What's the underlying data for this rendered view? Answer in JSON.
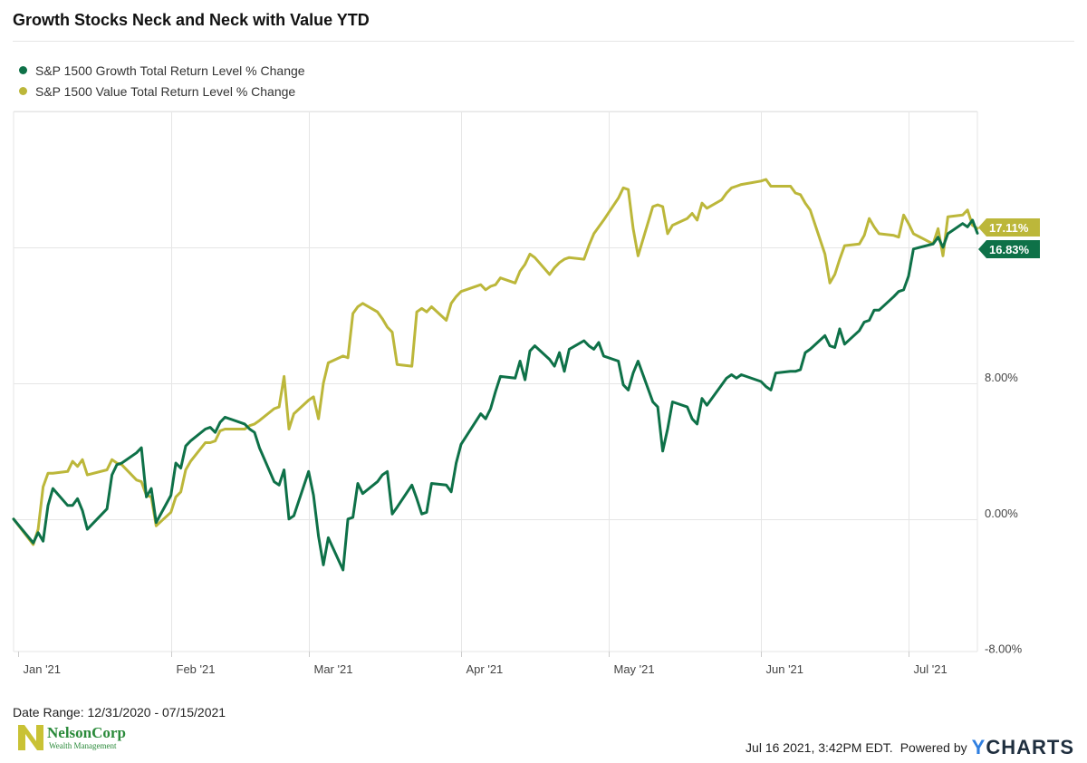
{
  "title": "Growth Stocks Neck and Neck with Value YTD",
  "date_range": "Date Range: 12/31/2020 - 07/15/2021",
  "timestamp": "Jul 16 2021, 3:42PM EDT.",
  "powered_by": "Powered by",
  "brand": {
    "y": "Y",
    "rest": "CHARTS"
  },
  "logo": {
    "name": "NelsonCorp",
    "sub": "Wealth Management"
  },
  "colors": {
    "growth": "#0e7148",
    "value": "#bcb73a",
    "grid": "#e6e6e6"
  },
  "chart_data": {
    "type": "line",
    "x_axis_ticks": [
      "Jan '21",
      "Feb '21",
      "Mar '21",
      "Apr '21",
      "May '21",
      "Jun '21",
      "Jul '21"
    ],
    "y_axis_ticks": [
      "8.00%",
      "0.00%",
      "-8.00%"
    ],
    "ylim": [
      -7.8,
      24
    ],
    "grid": true,
    "legend_position": "top-left",
    "series": [
      {
        "name": "S&P 1500 Growth Total Return Level % Change",
        "end_label": "16.83%",
        "points": [
          [
            "2020-12-31",
            0.0
          ],
          [
            "2021-01-04",
            -1.4
          ],
          [
            "2021-01-05",
            -0.8
          ],
          [
            "2021-01-06",
            -1.3
          ],
          [
            "2021-01-07",
            0.8
          ],
          [
            "2021-01-08",
            1.8
          ],
          [
            "2021-01-11",
            0.8
          ],
          [
            "2021-01-12",
            0.8
          ],
          [
            "2021-01-13",
            1.2
          ],
          [
            "2021-01-14",
            0.5
          ],
          [
            "2021-01-15",
            -0.6
          ],
          [
            "2021-01-19",
            0.6
          ],
          [
            "2021-01-20",
            2.6
          ],
          [
            "2021-01-21",
            3.2
          ],
          [
            "2021-01-22",
            3.3
          ],
          [
            "2021-01-25",
            3.9
          ],
          [
            "2021-01-26",
            4.2
          ],
          [
            "2021-01-27",
            1.3
          ],
          [
            "2021-01-28",
            1.8
          ],
          [
            "2021-01-29",
            -0.2
          ],
          [
            "2021-02-01",
            1.4
          ],
          [
            "2021-02-02",
            3.3
          ],
          [
            "2021-02-03",
            3.0
          ],
          [
            "2021-02-04",
            4.3
          ],
          [
            "2021-02-05",
            4.6
          ],
          [
            "2021-02-08",
            5.3
          ],
          [
            "2021-02-09",
            5.4
          ],
          [
            "2021-02-10",
            5.1
          ],
          [
            "2021-02-11",
            5.7
          ],
          [
            "2021-02-12",
            6.0
          ],
          [
            "2021-02-16",
            5.6
          ],
          [
            "2021-02-17",
            5.3
          ],
          [
            "2021-02-18",
            5.1
          ],
          [
            "2021-02-19",
            4.2
          ],
          [
            "2021-02-22",
            2.2
          ],
          [
            "2021-02-23",
            2.0
          ],
          [
            "2021-02-24",
            2.9
          ],
          [
            "2021-02-25",
            0.0
          ],
          [
            "2021-02-26",
            0.2
          ],
          [
            "2021-03-01",
            2.8
          ],
          [
            "2021-03-02",
            1.4
          ],
          [
            "2021-03-03",
            -1.0
          ],
          [
            "2021-03-04",
            -2.7
          ],
          [
            "2021-03-05",
            -1.1
          ],
          [
            "2021-03-08",
            -3.0
          ],
          [
            "2021-03-09",
            0.0
          ],
          [
            "2021-03-10",
            0.1
          ],
          [
            "2021-03-11",
            2.1
          ],
          [
            "2021-03-12",
            1.5
          ],
          [
            "2021-03-15",
            2.2
          ],
          [
            "2021-03-16",
            2.6
          ],
          [
            "2021-03-17",
            2.8
          ],
          [
            "2021-03-18",
            0.3
          ],
          [
            "2021-03-19",
            0.7
          ],
          [
            "2021-03-22",
            2.0
          ],
          [
            "2021-03-23",
            1.2
          ],
          [
            "2021-03-24",
            0.3
          ],
          [
            "2021-03-25",
            0.4
          ],
          [
            "2021-03-26",
            2.1
          ],
          [
            "2021-03-29",
            2.0
          ],
          [
            "2021-03-30",
            1.6
          ],
          [
            "2021-03-31",
            3.3
          ],
          [
            "2021-04-01",
            4.4
          ],
          [
            "2021-04-05",
            6.2
          ],
          [
            "2021-04-06",
            5.9
          ],
          [
            "2021-04-07",
            6.5
          ],
          [
            "2021-04-08",
            7.5
          ],
          [
            "2021-04-09",
            8.4
          ],
          [
            "2021-04-12",
            8.3
          ],
          [
            "2021-04-13",
            9.3
          ],
          [
            "2021-04-14",
            8.2
          ],
          [
            "2021-04-15",
            9.9
          ],
          [
            "2021-04-16",
            10.2
          ],
          [
            "2021-04-19",
            9.4
          ],
          [
            "2021-04-20",
            9.0
          ],
          [
            "2021-04-21",
            9.8
          ],
          [
            "2021-04-22",
            8.7
          ],
          [
            "2021-04-23",
            10.0
          ],
          [
            "2021-04-26",
            10.5
          ],
          [
            "2021-04-27",
            10.2
          ],
          [
            "2021-04-28",
            10.0
          ],
          [
            "2021-04-29",
            10.4
          ],
          [
            "2021-04-30",
            9.6
          ],
          [
            "2021-05-03",
            9.3
          ],
          [
            "2021-05-04",
            7.9
          ],
          [
            "2021-05-05",
            7.6
          ],
          [
            "2021-05-06",
            8.6
          ],
          [
            "2021-05-07",
            9.3
          ],
          [
            "2021-05-10",
            6.9
          ],
          [
            "2021-05-11",
            6.6
          ],
          [
            "2021-05-12",
            4.0
          ],
          [
            "2021-05-13",
            5.3
          ],
          [
            "2021-05-14",
            6.9
          ],
          [
            "2021-05-17",
            6.6
          ],
          [
            "2021-05-18",
            5.9
          ],
          [
            "2021-05-19",
            5.6
          ],
          [
            "2021-05-20",
            7.1
          ],
          [
            "2021-05-21",
            6.7
          ],
          [
            "2021-05-24",
            7.9
          ],
          [
            "2021-05-25",
            8.3
          ],
          [
            "2021-05-26",
            8.5
          ],
          [
            "2021-05-27",
            8.3
          ],
          [
            "2021-05-28",
            8.5
          ],
          [
            "2021-06-01",
            8.1
          ],
          [
            "2021-06-02",
            7.8
          ],
          [
            "2021-06-03",
            7.6
          ],
          [
            "2021-06-04",
            8.6
          ],
          [
            "2021-06-07",
            8.7
          ],
          [
            "2021-06-08",
            8.7
          ],
          [
            "2021-06-09",
            8.8
          ],
          [
            "2021-06-10",
            9.8
          ],
          [
            "2021-06-11",
            10.0
          ],
          [
            "2021-06-14",
            10.8
          ],
          [
            "2021-06-15",
            10.2
          ],
          [
            "2021-06-16",
            10.1
          ],
          [
            "2021-06-17",
            11.2
          ],
          [
            "2021-06-18",
            10.3
          ],
          [
            "2021-06-21",
            11.1
          ],
          [
            "2021-06-22",
            11.6
          ],
          [
            "2021-06-23",
            11.7
          ],
          [
            "2021-06-24",
            12.3
          ],
          [
            "2021-06-25",
            12.3
          ],
          [
            "2021-06-28",
            13.1
          ],
          [
            "2021-06-29",
            13.4
          ],
          [
            "2021-06-30",
            13.5
          ],
          [
            "2021-07-01",
            14.3
          ],
          [
            "2021-07-02",
            15.9
          ],
          [
            "2021-07-06",
            16.2
          ],
          [
            "2021-07-07",
            16.6
          ],
          [
            "2021-07-08",
            16.0
          ],
          [
            "2021-07-09",
            16.8
          ],
          [
            "2021-07-12",
            17.4
          ],
          [
            "2021-07-13",
            17.2
          ],
          [
            "2021-07-14",
            17.6
          ],
          [
            "2021-07-15",
            16.83
          ]
        ]
      },
      {
        "name": "S&P 1500 Value Total Return Level % Change",
        "end_label": "17.11%",
        "points": [
          [
            "2020-12-31",
            0.0
          ],
          [
            "2021-01-04",
            -1.5
          ],
          [
            "2021-01-05",
            -0.6
          ],
          [
            "2021-01-06",
            1.9
          ],
          [
            "2021-01-07",
            2.7
          ],
          [
            "2021-01-08",
            2.7
          ],
          [
            "2021-01-11",
            2.8
          ],
          [
            "2021-01-12",
            3.4
          ],
          [
            "2021-01-13",
            3.1
          ],
          [
            "2021-01-14",
            3.5
          ],
          [
            "2021-01-15",
            2.6
          ],
          [
            "2021-01-19",
            2.9
          ],
          [
            "2021-01-20",
            3.5
          ],
          [
            "2021-01-21",
            3.3
          ],
          [
            "2021-01-22",
            3.2
          ],
          [
            "2021-01-25",
            2.3
          ],
          [
            "2021-01-26",
            2.2
          ],
          [
            "2021-01-27",
            1.4
          ],
          [
            "2021-01-28",
            1.3
          ],
          [
            "2021-01-29",
            -0.4
          ],
          [
            "2021-02-01",
            0.4
          ],
          [
            "2021-02-02",
            1.3
          ],
          [
            "2021-02-03",
            1.6
          ],
          [
            "2021-02-04",
            2.9
          ],
          [
            "2021-02-05",
            3.4
          ],
          [
            "2021-02-08",
            4.5
          ],
          [
            "2021-02-09",
            4.5
          ],
          [
            "2021-02-10",
            4.6
          ],
          [
            "2021-02-11",
            5.2
          ],
          [
            "2021-02-12",
            5.3
          ],
          [
            "2021-02-16",
            5.3
          ],
          [
            "2021-02-17",
            5.5
          ],
          [
            "2021-02-18",
            5.6
          ],
          [
            "2021-02-19",
            5.8
          ],
          [
            "2021-02-22",
            6.5
          ],
          [
            "2021-02-23",
            6.6
          ],
          [
            "2021-02-24",
            8.4
          ],
          [
            "2021-02-25",
            5.3
          ],
          [
            "2021-02-26",
            6.2
          ],
          [
            "2021-03-01",
            7.0
          ],
          [
            "2021-03-02",
            7.2
          ],
          [
            "2021-03-03",
            5.9
          ],
          [
            "2021-03-04",
            8.0
          ],
          [
            "2021-03-05",
            9.2
          ],
          [
            "2021-03-08",
            9.6
          ],
          [
            "2021-03-09",
            9.5
          ],
          [
            "2021-03-10",
            12.1
          ],
          [
            "2021-03-11",
            12.5
          ],
          [
            "2021-03-12",
            12.7
          ],
          [
            "2021-03-15",
            12.2
          ],
          [
            "2021-03-16",
            11.8
          ],
          [
            "2021-03-17",
            11.3
          ],
          [
            "2021-03-18",
            11.0
          ],
          [
            "2021-03-19",
            9.1
          ],
          [
            "2021-03-22",
            9.0
          ],
          [
            "2021-03-23",
            12.2
          ],
          [
            "2021-03-24",
            12.4
          ],
          [
            "2021-03-25",
            12.2
          ],
          [
            "2021-03-26",
            12.5
          ],
          [
            "2021-03-29",
            11.7
          ],
          [
            "2021-03-30",
            12.7
          ],
          [
            "2021-03-31",
            13.1
          ],
          [
            "2021-04-01",
            13.4
          ],
          [
            "2021-04-05",
            13.8
          ],
          [
            "2021-04-06",
            13.5
          ],
          [
            "2021-04-07",
            13.7
          ],
          [
            "2021-04-08",
            13.8
          ],
          [
            "2021-04-09",
            14.2
          ],
          [
            "2021-04-12",
            13.9
          ],
          [
            "2021-04-13",
            14.6
          ],
          [
            "2021-04-14",
            15.0
          ],
          [
            "2021-04-15",
            15.6
          ],
          [
            "2021-04-16",
            15.4
          ],
          [
            "2021-04-19",
            14.4
          ],
          [
            "2021-04-20",
            14.8
          ],
          [
            "2021-04-21",
            15.1
          ],
          [
            "2021-04-22",
            15.3
          ],
          [
            "2021-04-23",
            15.4
          ],
          [
            "2021-04-26",
            15.3
          ],
          [
            "2021-04-27",
            16.1
          ],
          [
            "2021-04-28",
            16.8
          ],
          [
            "2021-04-29",
            17.2
          ],
          [
            "2021-04-30",
            17.6
          ],
          [
            "2021-05-03",
            18.9
          ],
          [
            "2021-05-04",
            19.5
          ],
          [
            "2021-05-05",
            19.4
          ],
          [
            "2021-05-06",
            17.1
          ],
          [
            "2021-05-07",
            15.5
          ],
          [
            "2021-05-10",
            18.4
          ],
          [
            "2021-05-11",
            18.5
          ],
          [
            "2021-05-12",
            18.4
          ],
          [
            "2021-05-13",
            16.8
          ],
          [
            "2021-05-14",
            17.3
          ],
          [
            "2021-05-17",
            17.7
          ],
          [
            "2021-05-18",
            18.0
          ],
          [
            "2021-05-19",
            17.6
          ],
          [
            "2021-05-20",
            18.6
          ],
          [
            "2021-05-21",
            18.3
          ],
          [
            "2021-05-24",
            18.8
          ],
          [
            "2021-05-25",
            19.2
          ],
          [
            "2021-05-26",
            19.5
          ],
          [
            "2021-05-27",
            19.6
          ],
          [
            "2021-05-28",
            19.7
          ],
          [
            "2021-06-01",
            19.9
          ],
          [
            "2021-06-02",
            20.0
          ],
          [
            "2021-06-03",
            19.6
          ],
          [
            "2021-06-04",
            19.6
          ],
          [
            "2021-06-07",
            19.6
          ],
          [
            "2021-06-08",
            19.2
          ],
          [
            "2021-06-09",
            19.1
          ],
          [
            "2021-06-10",
            18.6
          ],
          [
            "2021-06-11",
            18.2
          ],
          [
            "2021-06-14",
            15.6
          ],
          [
            "2021-06-15",
            13.9
          ],
          [
            "2021-06-16",
            14.4
          ],
          [
            "2021-06-17",
            15.3
          ],
          [
            "2021-06-18",
            16.1
          ],
          [
            "2021-06-21",
            16.2
          ],
          [
            "2021-06-22",
            16.7
          ],
          [
            "2021-06-23",
            17.7
          ],
          [
            "2021-06-24",
            17.2
          ],
          [
            "2021-06-25",
            16.8
          ],
          [
            "2021-06-28",
            16.7
          ],
          [
            "2021-06-29",
            16.6
          ],
          [
            "2021-06-30",
            17.9
          ],
          [
            "2021-07-01",
            17.4
          ],
          [
            "2021-07-02",
            16.8
          ],
          [
            "2021-07-06",
            16.2
          ],
          [
            "2021-07-07",
            17.1
          ],
          [
            "2021-07-08",
            15.5
          ],
          [
            "2021-07-09",
            17.8
          ],
          [
            "2021-07-12",
            17.9
          ],
          [
            "2021-07-13",
            18.2
          ],
          [
            "2021-07-14",
            17.3
          ],
          [
            "2021-07-15",
            17.11
          ]
        ]
      }
    ]
  }
}
